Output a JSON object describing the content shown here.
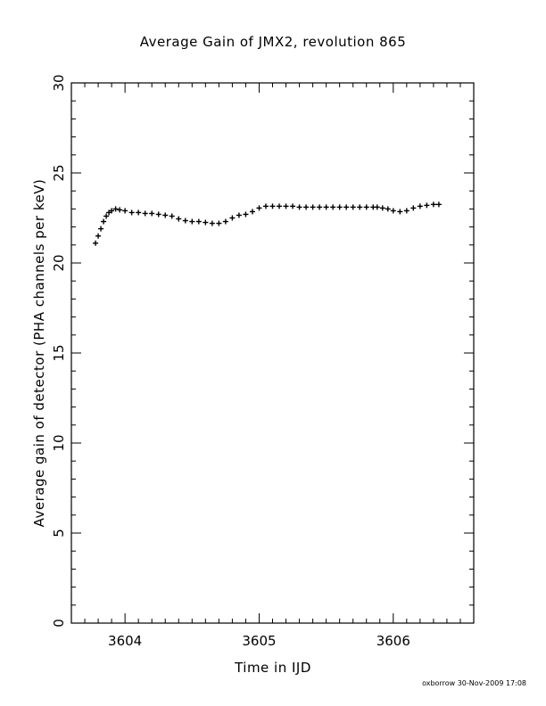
{
  "chart_data": {
    "type": "scatter",
    "title": "Average Gain of JMX2, revolution 865",
    "xlabel": "Time in IJD",
    "ylabel": "Average gain of detector (PHA channels per keV)",
    "xlim": [
      3603.6,
      3606.6
    ],
    "ylim": [
      0,
      30
    ],
    "xticks": [
      3604,
      3605,
      3606
    ],
    "yticks": [
      0,
      5,
      10,
      15,
      20,
      25,
      30
    ],
    "marker": "+",
    "color": "#000000",
    "grid": false,
    "series": [
      {
        "x": [
          3603.78,
          3603.8,
          3603.82,
          3603.84,
          3603.86,
          3603.88,
          3603.9,
          3603.93,
          3603.96,
          3604.0,
          3604.05,
          3604.1,
          3604.15,
          3604.2,
          3604.25,
          3604.3,
          3604.35,
          3604.4,
          3604.45,
          3604.5,
          3604.55,
          3604.6,
          3604.65,
          3604.7,
          3604.75,
          3604.8,
          3604.85,
          3604.9,
          3604.95,
          3605.0,
          3605.05,
          3605.1,
          3605.15,
          3605.2,
          3605.25,
          3605.3,
          3605.35,
          3605.4,
          3605.45,
          3605.5,
          3605.55,
          3605.6,
          3605.65,
          3605.7,
          3605.75,
          3605.8,
          3605.85,
          3605.88,
          3605.92,
          3605.96,
          3606.0,
          3606.05,
          3606.1,
          3606.15,
          3606.2,
          3606.25,
          3606.3,
          3606.34
        ],
        "y": [
          21.1,
          21.5,
          21.9,
          22.3,
          22.6,
          22.8,
          22.9,
          23.0,
          22.95,
          22.9,
          22.8,
          22.8,
          22.75,
          22.75,
          22.7,
          22.65,
          22.6,
          22.45,
          22.35,
          22.3,
          22.3,
          22.25,
          22.2,
          22.2,
          22.3,
          22.5,
          22.65,
          22.7,
          22.85,
          23.05,
          23.15,
          23.15,
          23.15,
          23.15,
          23.15,
          23.1,
          23.1,
          23.1,
          23.1,
          23.1,
          23.1,
          23.1,
          23.1,
          23.1,
          23.1,
          23.1,
          23.1,
          23.1,
          23.05,
          23.0,
          22.9,
          22.85,
          22.9,
          23.05,
          23.15,
          23.2,
          23.25,
          23.25
        ]
      }
    ]
  },
  "footer": "oxborrow 30-Nov-2009 17:08"
}
